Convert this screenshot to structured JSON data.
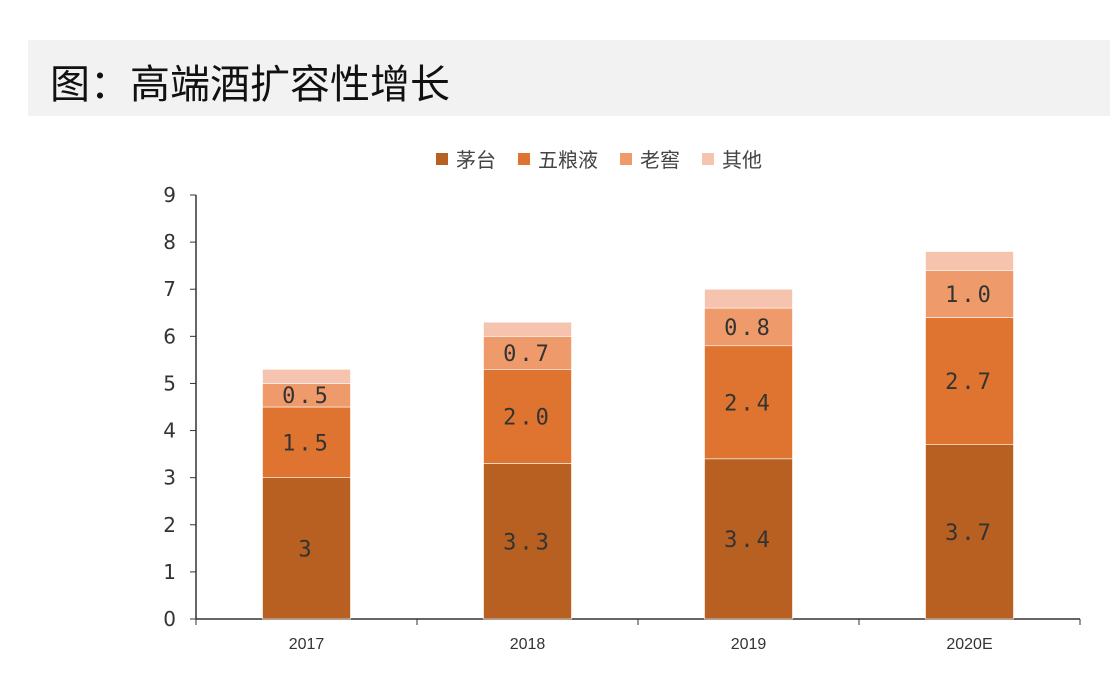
{
  "title": "图：高端酒扩容性增长",
  "chart_data": {
    "type": "bar",
    "stacked": true,
    "categories": [
      "2017",
      "2018",
      "2019",
      "2020E"
    ],
    "series": [
      {
        "name": "茅台",
        "color": "#B85F22",
        "values": [
          3.0,
          3.3,
          3.4,
          3.7
        ],
        "labels": [
          "3",
          "3.3",
          "3.4",
          "3.7"
        ]
      },
      {
        "name": "五粮液",
        "color": "#DE7430",
        "values": [
          1.5,
          2.0,
          2.4,
          2.7
        ],
        "labels": [
          "1.5",
          "2.0",
          "2.4",
          "2.7"
        ]
      },
      {
        "name": "老窖",
        "color": "#EF9A6A",
        "values": [
          0.5,
          0.7,
          0.8,
          1.0
        ],
        "labels": [
          "0.5",
          "0.7",
          "0.8",
          "1.0"
        ]
      },
      {
        "name": "其他",
        "color": "#F5C3AE",
        "values": [
          0.3,
          0.3,
          0.4,
          0.4
        ],
        "labels": [
          "",
          "",
          "",
          ""
        ]
      }
    ],
    "ylim": [
      0,
      9
    ],
    "yticks": [
      "0",
      "1",
      "2",
      "3",
      "4",
      "5",
      "6",
      "7",
      "8",
      "9"
    ],
    "legend": "top",
    "grid": false
  }
}
